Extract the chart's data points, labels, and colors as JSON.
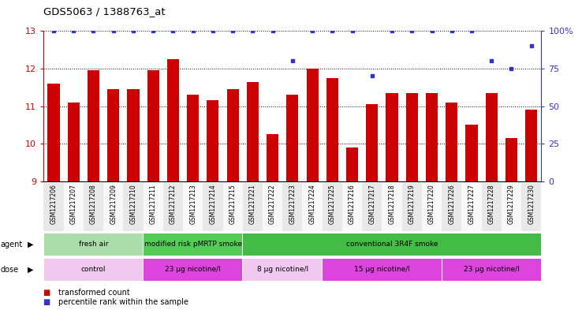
{
  "title": "GDS5063 / 1388763_at",
  "samples": [
    "GSM1217206",
    "GSM1217207",
    "GSM1217208",
    "GSM1217209",
    "GSM1217210",
    "GSM1217211",
    "GSM1217212",
    "GSM1217213",
    "GSM1217214",
    "GSM1217215",
    "GSM1217221",
    "GSM1217222",
    "GSM1217223",
    "GSM1217224",
    "GSM1217225",
    "GSM1217216",
    "GSM1217217",
    "GSM1217218",
    "GSM1217219",
    "GSM1217220",
    "GSM1217226",
    "GSM1217227",
    "GSM1217228",
    "GSM1217229",
    "GSM1217230"
  ],
  "bar_values": [
    11.6,
    11.1,
    11.95,
    11.45,
    11.45,
    11.95,
    12.25,
    11.3,
    11.15,
    11.45,
    11.65,
    10.25,
    11.3,
    12.0,
    11.75,
    9.9,
    11.05,
    11.35,
    11.35,
    11.35,
    11.1,
    10.5,
    11.35,
    10.15,
    10.9
  ],
  "percentile_values": [
    100,
    100,
    100,
    100,
    100,
    100,
    100,
    100,
    100,
    100,
    100,
    100,
    80,
    100,
    100,
    100,
    70,
    100,
    100,
    100,
    100,
    100,
    80,
    75,
    90
  ],
  "ylim_left": [
    9,
    13
  ],
  "ylim_right": [
    0,
    100
  ],
  "yticks_left": [
    9,
    10,
    11,
    12,
    13
  ],
  "yticks_right": [
    0,
    25,
    50,
    75,
    100
  ],
  "bar_color": "#cc0000",
  "dot_color": "#3333cc",
  "agent_groups": [
    {
      "label": "fresh air",
      "start": 0,
      "end": 4,
      "color": "#aaddaa"
    },
    {
      "label": "modified risk pMRTP smoke",
      "start": 5,
      "end": 9,
      "color": "#55cc55"
    },
    {
      "label": "conventional 3R4F smoke",
      "start": 10,
      "end": 24,
      "color": "#44bb44"
    }
  ],
  "dose_groups": [
    {
      "label": "control",
      "start": 0,
      "end": 4,
      "color": "#f0c8f0"
    },
    {
      "label": "23 μg nicotine/l",
      "start": 5,
      "end": 9,
      "color": "#dd44dd"
    },
    {
      "label": "8 μg nicotine/l",
      "start": 10,
      "end": 13,
      "color": "#f0c8f0"
    },
    {
      "label": "15 μg nicotine/l",
      "start": 14,
      "end": 19,
      "color": "#dd44dd"
    },
    {
      "label": "23 μg nicotine/l",
      "start": 20,
      "end": 24,
      "color": "#dd44dd"
    }
  ],
  "legend_items": [
    {
      "label": "transformed count",
      "color": "#cc0000"
    },
    {
      "label": "percentile rank within the sample",
      "color": "#3333cc"
    }
  ],
  "bg_color": "#ffffff"
}
